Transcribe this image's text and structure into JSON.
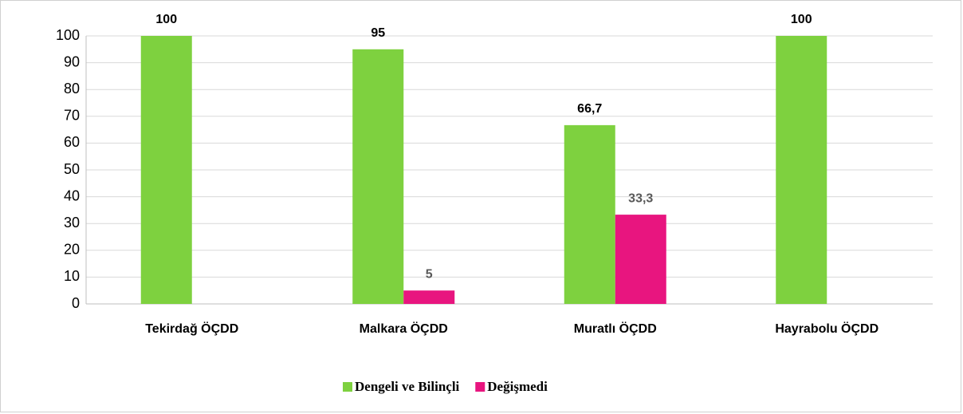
{
  "chart_data": {
    "type": "bar",
    "categories": [
      "Tekirdağ ÖÇDD",
      "Malkara ÖÇDD",
      "Muratlı ÖÇDD",
      "Hayrabolu ÖÇDD"
    ],
    "series": [
      {
        "name": "Dengeli ve Bilinçli",
        "color": "#7ed13f",
        "values": [
          100,
          95,
          66.7,
          100
        ],
        "value_labels": [
          "100",
          "95",
          "66,7",
          "100"
        ]
      },
      {
        "name": "Değişmedi",
        "color": "#e8157f",
        "values": [
          null,
          5,
          33.3,
          null
        ],
        "value_labels": [
          null,
          "5",
          "33,3",
          null
        ]
      }
    ],
    "ylim": [
      0,
      100
    ],
    "yticks": [
      0,
      10,
      20,
      30,
      40,
      50,
      60,
      70,
      80,
      90,
      100
    ],
    "grid": true,
    "legend": "bottom"
  }
}
